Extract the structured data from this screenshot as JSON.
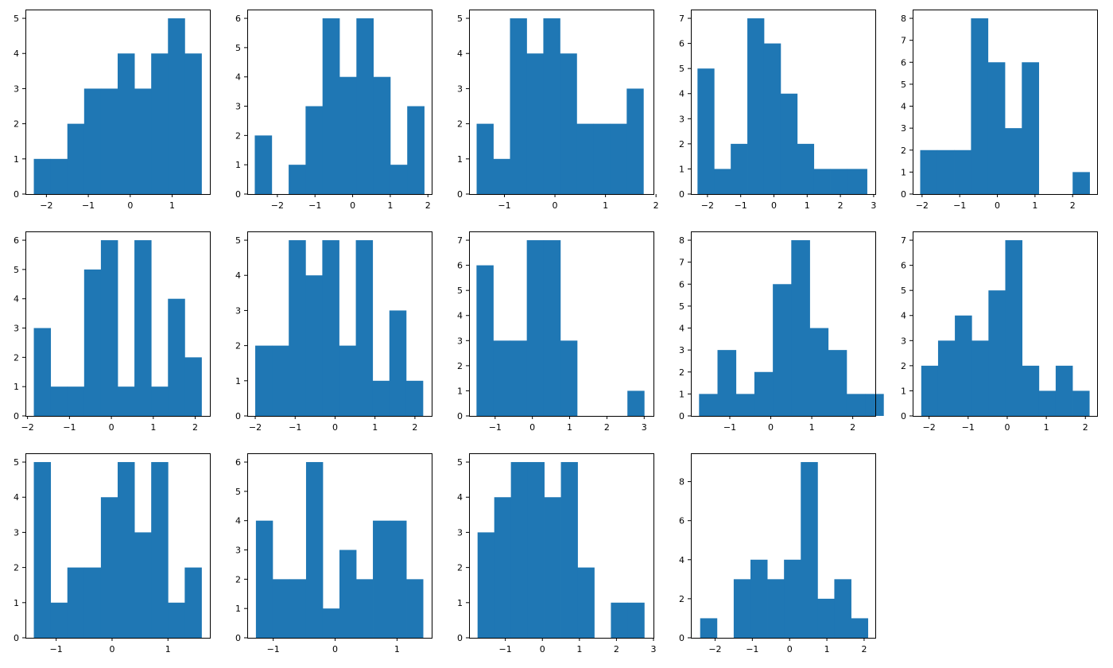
{
  "bar_color": "#1f77b4",
  "chart_data": [
    {
      "type": "bar",
      "subtype": "histogram",
      "bin_edges": [
        -2.3,
        -1.9,
        -1.5,
        -1.1,
        -0.7,
        -0.3,
        0.1,
        0.5,
        0.9,
        1.3,
        1.7
      ],
      "counts": [
        1,
        1,
        2,
        3,
        3,
        4,
        3,
        4,
        5,
        4
      ],
      "xlim": [
        -2.5,
        1.9
      ],
      "ylim": [
        0,
        5.25
      ],
      "xticks": [
        -2,
        -1,
        0,
        1
      ],
      "yticks": [
        0,
        1,
        2,
        3,
        4,
        5
      ]
    },
    {
      "type": "bar",
      "subtype": "histogram",
      "bin_edges": [
        -2.6,
        -2.15,
        -1.7,
        -1.25,
        -0.8,
        -0.35,
        0.1,
        0.55,
        1.0,
        1.45,
        1.9
      ],
      "counts": [
        2,
        0,
        1,
        3,
        6,
        4,
        6,
        4,
        1,
        3
      ],
      "xlim": [
        -2.8,
        2.1
      ],
      "ylim": [
        0,
        6.3
      ],
      "xticks": [
        -2,
        -1,
        0,
        1,
        2
      ],
      "yticks": [
        0,
        1,
        2,
        3,
        4,
        5,
        6
      ]
    },
    {
      "type": "bar",
      "subtype": "histogram",
      "bin_edges": [
        -1.55,
        -1.22,
        -0.89,
        -0.56,
        -0.23,
        0.1,
        0.43,
        0.76,
        1.09,
        1.42,
        1.75
      ],
      "counts": [
        2,
        1,
        5,
        4,
        5,
        4,
        2,
        2,
        2,
        3
      ],
      "xlim": [
        -1.7,
        1.95
      ],
      "ylim": [
        0,
        5.25
      ],
      "xticks": [
        -1,
        0,
        1,
        2
      ],
      "yticks": [
        0,
        1,
        2,
        3,
        4,
        5
      ]
    },
    {
      "type": "bar",
      "subtype": "histogram",
      "bin_edges": [
        -2.3,
        -1.8,
        -1.3,
        -0.8,
        -0.3,
        0.2,
        0.7,
        1.2,
        1.7,
        2.2,
        2.8
      ],
      "counts": [
        5,
        1,
        2,
        7,
        6,
        4,
        2,
        1,
        1,
        1
      ],
      "xlim": [
        -2.5,
        3.05
      ],
      "ylim": [
        0,
        7.35
      ],
      "xticks": [
        -2,
        -1,
        0,
        1,
        2,
        3
      ],
      "yticks": [
        0,
        1,
        2,
        3,
        4,
        5,
        6,
        7
      ]
    },
    {
      "type": "bar",
      "subtype": "histogram",
      "bin_edges": [
        -2.05,
        -1.6,
        -1.15,
        -0.7,
        -0.25,
        0.2,
        0.65,
        1.1,
        1.55,
        2.0,
        2.45
      ],
      "counts": [
        2,
        2,
        2,
        8,
        6,
        3,
        6,
        0,
        0,
        1
      ],
      "xlim": [
        -2.25,
        2.65
      ],
      "ylim": [
        0,
        8.4
      ],
      "xticks": [
        -2,
        -1,
        0,
        1,
        2
      ],
      "yticks": [
        0,
        1,
        2,
        3,
        4,
        5,
        6,
        7,
        8
      ]
    },
    {
      "type": "bar",
      "subtype": "histogram",
      "bin_edges": [
        -1.85,
        -1.45,
        -1.05,
        -0.65,
        -0.25,
        0.15,
        0.55,
        0.95,
        1.35,
        1.75,
        2.15
      ],
      "counts": [
        3,
        1,
        1,
        5,
        6,
        1,
        6,
        1,
        4,
        2
      ],
      "xlim": [
        -2.05,
        2.35
      ],
      "ylim": [
        0,
        6.3
      ],
      "xticks": [
        -2,
        -1,
        0,
        1,
        2
      ],
      "yticks": [
        0,
        1,
        2,
        3,
        4,
        5,
        6
      ]
    },
    {
      "type": "bar",
      "subtype": "histogram",
      "bin_edges": [
        -2.0,
        -1.58,
        -1.16,
        -0.74,
        -0.32,
        0.1,
        0.52,
        0.94,
        1.36,
        1.78,
        2.2
      ],
      "counts": [
        2,
        2,
        5,
        4,
        5,
        2,
        5,
        1,
        3,
        1
      ],
      "xlim": [
        -2.2,
        2.42
      ],
      "ylim": [
        0,
        5.25
      ],
      "xticks": [
        -2,
        -1,
        0,
        1,
        2
      ],
      "yticks": [
        0,
        1,
        2,
        3,
        4,
        5
      ]
    },
    {
      "type": "bar",
      "subtype": "histogram",
      "bin_edges": [
        -1.5,
        -1.05,
        -0.6,
        -0.15,
        0.3,
        0.75,
        1.2,
        1.65,
        2.1,
        2.55,
        3.0
      ],
      "counts": [
        6,
        3,
        3,
        7,
        7,
        3,
        0,
        0,
        0,
        1
      ],
      "xlim": [
        -1.7,
        3.25
      ],
      "ylim": [
        0,
        7.35
      ],
      "xticks": [
        -1,
        0,
        1,
        2,
        3
      ],
      "yticks": [
        0,
        1,
        2,
        3,
        4,
        5,
        6,
        7
      ]
    },
    {
      "type": "bar",
      "subtype": "histogram",
      "bin_edges": [
        -1.75,
        -1.3,
        -0.85,
        -0.4,
        0.05,
        0.5,
        0.95,
        1.4,
        1.85,
        2.3,
        2.75
      ],
      "counts": [
        1,
        3,
        1,
        2,
        6,
        8,
        4,
        3,
        1,
        1
      ],
      "xlim": [
        -1.95,
        2.55
      ],
      "ylim": [
        0,
        8.4
      ],
      "xticks": [
        -1,
        0,
        1,
        2
      ],
      "yticks": [
        0,
        1,
        2,
        3,
        4,
        5,
        6,
        7,
        8
      ]
    },
    {
      "type": "bar",
      "subtype": "histogram",
      "bin_edges": [
        -2.2,
        -1.77,
        -1.34,
        -0.91,
        -0.48,
        -0.05,
        0.38,
        0.81,
        1.24,
        1.67,
        2.1
      ],
      "counts": [
        2,
        3,
        4,
        3,
        5,
        7,
        2,
        1,
        2,
        1
      ],
      "xlim": [
        -2.42,
        2.3
      ],
      "ylim": [
        0,
        7.35
      ],
      "xticks": [
        -2,
        -1,
        0,
        1,
        2
      ],
      "yticks": [
        0,
        1,
        2,
        3,
        4,
        5,
        6,
        7
      ]
    },
    {
      "type": "bar",
      "subtype": "histogram",
      "bin_edges": [
        -1.4,
        -1.1,
        -0.8,
        -0.5,
        -0.2,
        0.1,
        0.4,
        0.7,
        1.0,
        1.3,
        1.6
      ],
      "counts": [
        5,
        1,
        2,
        2,
        4,
        5,
        3,
        5,
        1,
        2
      ],
      "xlim": [
        -1.55,
        1.75
      ],
      "ylim": [
        0,
        5.25
      ],
      "xticks": [
        -1,
        0,
        1
      ],
      "yticks": [
        0,
        1,
        2,
        3,
        4,
        5
      ]
    },
    {
      "type": "bar",
      "subtype": "histogram",
      "bin_edges": [
        -1.28,
        -1.01,
        -0.74,
        -0.47,
        -0.2,
        0.07,
        0.34,
        0.61,
        0.88,
        1.15,
        1.42
      ],
      "counts": [
        4,
        2,
        2,
        6,
        1,
        3,
        2,
        4,
        4,
        2
      ],
      "xlim": [
        -1.42,
        1.56
      ],
      "ylim": [
        0,
        6.3
      ],
      "xticks": [
        -1,
        0,
        1
      ],
      "yticks": [
        0,
        1,
        2,
        3,
        4,
        5,
        6
      ]
    },
    {
      "type": "bar",
      "subtype": "histogram",
      "bin_edges": [
        -1.75,
        -1.3,
        -0.85,
        -0.4,
        0.05,
        0.5,
        0.95,
        1.4,
        1.85,
        2.3,
        2.75
      ],
      "counts": [
        3,
        4,
        5,
        5,
        4,
        5,
        2,
        0,
        1,
        1
      ],
      "xlim": [
        -1.98,
        3.0
      ],
      "ylim": [
        0,
        5.25
      ],
      "xticks": [
        -1,
        0,
        1,
        2,
        3
      ],
      "yticks": [
        0,
        1,
        2,
        3,
        4,
        5
      ]
    },
    {
      "type": "bar",
      "subtype": "histogram",
      "bin_edges": [
        -2.4,
        -1.95,
        -1.5,
        -1.05,
        -0.6,
        -0.15,
        0.3,
        0.75,
        1.2,
        1.65,
        2.1
      ],
      "counts": [
        1,
        0,
        3,
        4,
        3,
        4,
        9,
        2,
        3,
        1
      ],
      "xlim": [
        -2.65,
        2.3
      ],
      "ylim": [
        0,
        9.45
      ],
      "xticks": [
        -2,
        -1,
        0,
        1,
        2
      ],
      "yticks": [
        0,
        2,
        4,
        6,
        8
      ]
    }
  ]
}
